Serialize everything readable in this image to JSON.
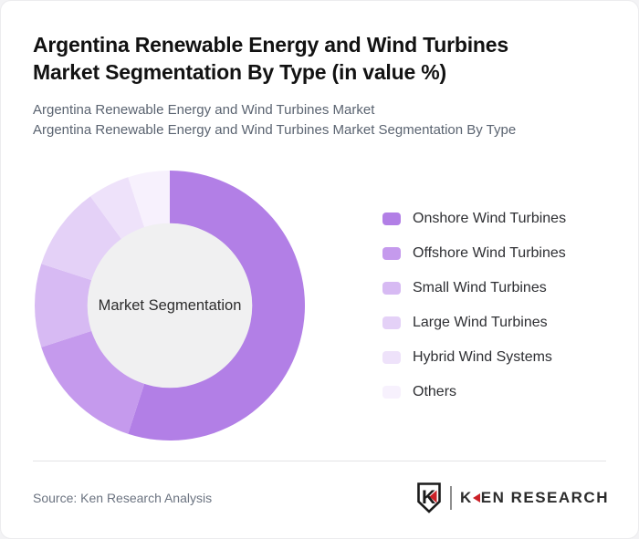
{
  "header": {
    "title_lines": [
      "Argentina Renewable Energy and Wind Turbines",
      "Market Segmentation By Type (in value %)"
    ],
    "subtitle_lines": [
      "Argentina Renewable Energy and Wind Turbines Market",
      "Argentina Renewable Energy and Wind Turbines Market Segmentation By Type"
    ]
  },
  "chart_data": {
    "type": "pie",
    "variant": "donut",
    "title": "Argentina Renewable Energy and Wind Turbines Market Segmentation By Type (in value %)",
    "center_label": "Market Segmentation",
    "unit": "% of value",
    "categories": [
      "Onshore Wind Turbines",
      "Offshore Wind Turbines",
      "Small Wind Turbines",
      "Large Wind Turbines",
      "Hybrid Wind Systems",
      "Others"
    ],
    "values": [
      55,
      15,
      10,
      10,
      5,
      5
    ],
    "colors": [
      "#b27fe6",
      "#c59aed",
      "#d7baf3",
      "#e4d1f7",
      "#eee2fa",
      "#f7f1fd"
    ],
    "start_angle_deg": 0,
    "direction": "clockwise",
    "inner_radius_ratio": 0.61,
    "center_fill": "#f0f0f1",
    "legend_position": "right"
  },
  "footer": {
    "source_label": "Source: Ken Research Analysis",
    "logo": {
      "badge_letter": "K",
      "brand_k": "K",
      "brand_rest": "EN RESEARCH",
      "accent_color": "#cb2027"
    }
  }
}
